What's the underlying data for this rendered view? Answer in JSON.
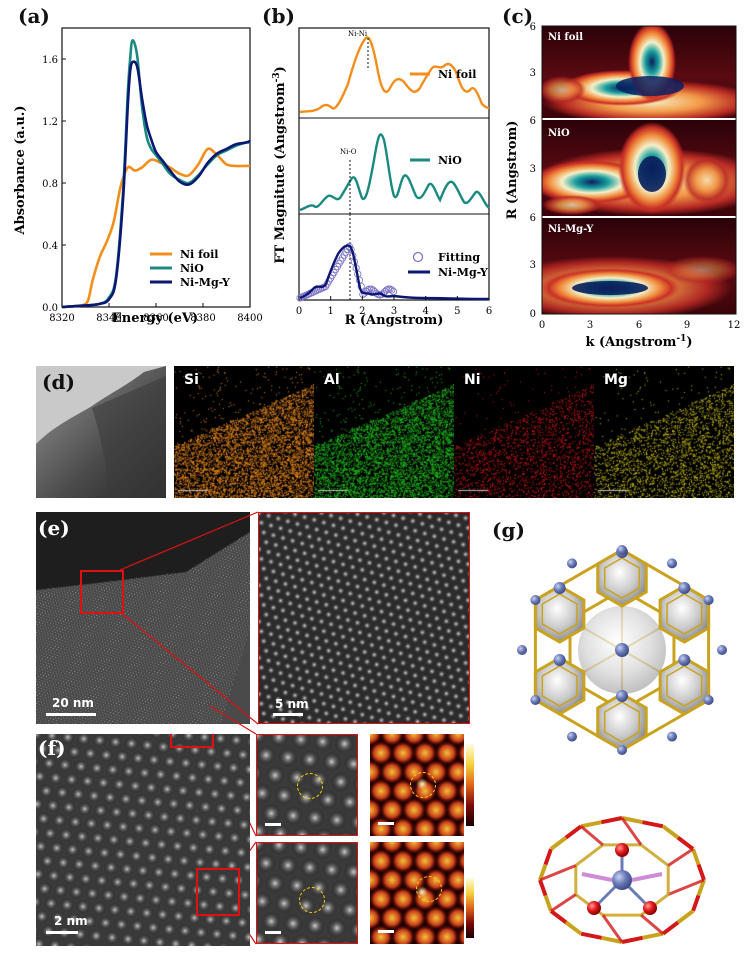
{
  "panels": {
    "a": "(a)",
    "b": "(b)",
    "c": "(c)",
    "d": "(d)",
    "e": "(e)",
    "f": "(f)",
    "g": "(g)"
  },
  "panel_a": {
    "xlabel": "Energy (eV)",
    "ylabel": "Absorbance (a.u.)",
    "x_ticks": [
      "8320",
      "8340",
      "8360",
      "8380",
      "8400"
    ],
    "y_ticks": [
      "0.0",
      "0.4",
      "0.8",
      "1.2",
      "1.6"
    ],
    "legend": [
      "Ni foil",
      "NiO",
      "Ni-Mg-Y"
    ],
    "colors": {
      "ni_foil": "#f28e1c",
      "nio": "#1a8a80",
      "nimgy": "#0c1673"
    }
  },
  "chart_data": {
    "type": "line",
    "xlabel": "Energy (eV)",
    "ylabel": "Absorbance (a.u.)",
    "xlim": [
      8320,
      8400
    ],
    "ylim": [
      0,
      1.8
    ],
    "series": [
      {
        "name": "Ni foil",
        "x": [
          8320,
          8328,
          8331,
          8333,
          8336,
          8339,
          8342,
          8345,
          8348,
          8351,
          8354,
          8358,
          8362,
          8366,
          8370,
          8374,
          8378,
          8382,
          8386,
          8390,
          8394,
          8398,
          8400
        ],
        "y": [
          0.0,
          0.01,
          0.04,
          0.17,
          0.32,
          0.42,
          0.55,
          0.78,
          0.9,
          0.88,
          0.9,
          0.95,
          0.93,
          0.9,
          0.86,
          0.85,
          0.92,
          1.02,
          0.98,
          0.92,
          0.91,
          0.91,
          0.91
        ]
      },
      {
        "name": "NiO",
        "x": [
          8320,
          8330,
          8336,
          8340,
          8343,
          8346,
          8348,
          8349,
          8350,
          8352,
          8354,
          8356,
          8358,
          8360,
          8363,
          8366,
          8370,
          8374,
          8378,
          8382,
          8386,
          8390,
          8394,
          8398,
          8400
        ],
        "y": [
          0.0,
          0.01,
          0.02,
          0.06,
          0.2,
          0.75,
          1.38,
          1.6,
          1.72,
          1.62,
          1.3,
          1.1,
          1.02,
          0.98,
          0.92,
          0.86,
          0.82,
          0.8,
          0.85,
          0.92,
          0.98,
          1.01,
          1.04,
          1.06,
          1.06
        ]
      },
      {
        "name": "Ni-Mg-Y",
        "x": [
          8320,
          8330,
          8336,
          8340,
          8343,
          8346,
          8348,
          8349,
          8350,
          8352,
          8354,
          8356,
          8358,
          8360,
          8363,
          8366,
          8370,
          8374,
          8378,
          8382,
          8386,
          8390,
          8394,
          8398,
          8400
        ],
        "y": [
          0.0,
          0.01,
          0.02,
          0.05,
          0.18,
          0.7,
          1.3,
          1.52,
          1.58,
          1.55,
          1.35,
          1.18,
          1.08,
          1.0,
          0.94,
          0.88,
          0.81,
          0.79,
          0.84,
          0.93,
          0.99,
          1.02,
          1.05,
          1.06,
          1.07
        ]
      }
    ]
  },
  "panel_b": {
    "xlabel": "R (Angstrom)",
    "ylabel_main": "FT Magnitute (Angstrom",
    "ylabel_sup": "-3",
    "ylabel_end": ")",
    "x_ticks": [
      "0",
      "1",
      "2",
      "3",
      "4",
      "5",
      "6"
    ],
    "sub1": {
      "legend": "Ni foil",
      "annot": "Ni-Ni",
      "color": "#f28e1c"
    },
    "sub2": {
      "legend": "NiO",
      "annot": "Ni-O",
      "color": "#1a8a80"
    },
    "sub3": {
      "legend_fit": "Fitting",
      "legend_line": "Ni-Mg-Y",
      "color": "#0c1673",
      "fit_color": "#7a6fc4"
    }
  },
  "panel_c": {
    "xlabel_main": "k (Angstrom",
    "xlabel_sup": "-1",
    "xlabel_end": ")",
    "ylabel": "R (Angstrom)",
    "x_ticks": [
      "0",
      "3",
      "6",
      "9",
      "12"
    ],
    "y_ticks_top": [
      "6",
      "3"
    ],
    "y_ticks_mid": [
      "6",
      "3"
    ],
    "y_ticks_bot": [
      "6",
      "3",
      "0"
    ],
    "maps": [
      "Ni foil",
      "NiO",
      "Ni-Mg-Y"
    ]
  },
  "panel_d": {
    "channels": [
      {
        "label": "Si",
        "color": "#f28e1c"
      },
      {
        "label": "Al",
        "color": "#22c41e"
      },
      {
        "label": "Ni",
        "color": "#e0191c"
      },
      {
        "label": "Mg",
        "color": "#d4c814"
      }
    ]
  },
  "panel_e": {
    "scale_left": "20 nm",
    "scale_right": "5 nm"
  },
  "panel_f": {
    "scale_left": "2 nm"
  }
}
